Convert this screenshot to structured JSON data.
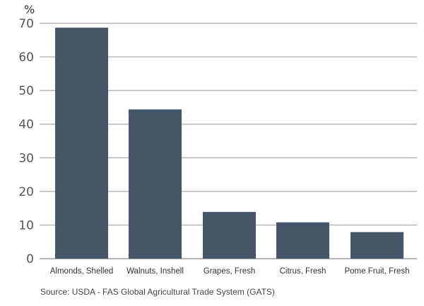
{
  "chart_data": {
    "type": "bar",
    "title": "",
    "ylabel": "%",
    "xlabel": "",
    "categories": [
      "Almonds, Shelled",
      "Walnuts, Inshell",
      "Grapes, Fresh",
      "Citrus, Fresh",
      "Pome Fruit, Fresh"
    ],
    "values": [
      68.7,
      44.4,
      13.9,
      10.8,
      7.9
    ],
    "ylim": [
      0,
      70
    ],
    "yticks": [
      0,
      10,
      20,
      30,
      40,
      50,
      60,
      70
    ],
    "grid": true,
    "bar_color": "#475569",
    "source": "Source: USDA - FAS Global Agricultural Trade System (GATS)"
  }
}
